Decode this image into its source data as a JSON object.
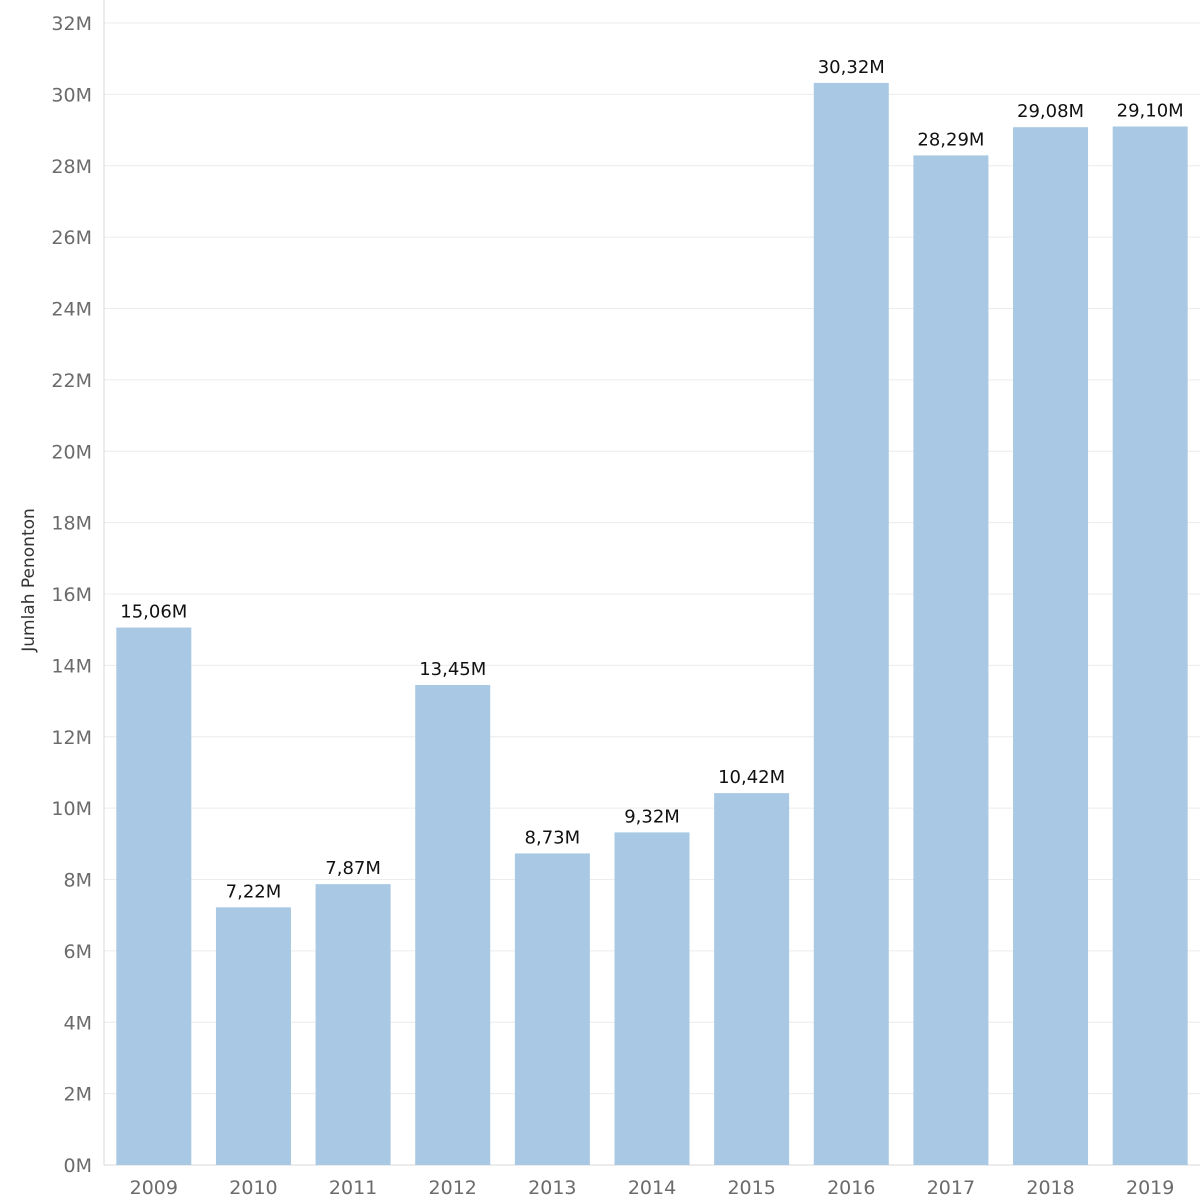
{
  "chart_data": {
    "type": "bar",
    "ylabel": "Jumlah Penonton",
    "xlabel": "",
    "title": "",
    "ylim": [
      0,
      32000000
    ],
    "y_ticks": [
      {
        "value": 0,
        "label": "0M"
      },
      {
        "value": 2000000,
        "label": "2M"
      },
      {
        "value": 4000000,
        "label": "4M"
      },
      {
        "value": 6000000,
        "label": "6M"
      },
      {
        "value": 8000000,
        "label": "8M"
      },
      {
        "value": 10000000,
        "label": "10M"
      },
      {
        "value": 12000000,
        "label": "12M"
      },
      {
        "value": 14000000,
        "label": "14M"
      },
      {
        "value": 16000000,
        "label": "16M"
      },
      {
        "value": 18000000,
        "label": "18M"
      },
      {
        "value": 20000000,
        "label": "20M"
      },
      {
        "value": 22000000,
        "label": "22M"
      },
      {
        "value": 24000000,
        "label": "24M"
      },
      {
        "value": 26000000,
        "label": "26M"
      },
      {
        "value": 28000000,
        "label": "28M"
      },
      {
        "value": 30000000,
        "label": "30M"
      },
      {
        "value": 32000000,
        "label": "32M"
      }
    ],
    "categories": [
      "2009",
      "2010",
      "2011",
      "2012",
      "2013",
      "2014",
      "2015",
      "2016",
      "2017",
      "2018",
      "2019"
    ],
    "values": [
      15060000,
      7220000,
      7870000,
      13450000,
      8730000,
      9320000,
      10420000,
      30320000,
      28290000,
      29080000,
      29100000
    ],
    "data_labels": [
      "15,06M",
      "7,22M",
      "7,87M",
      "13,45M",
      "8,73M",
      "9,32M",
      "10,42M",
      "30,32M",
      "28,29M",
      "29,08M",
      "29,10M"
    ],
    "bar_color": "#a8c8e3",
    "grid": true,
    "legend": "none"
  }
}
